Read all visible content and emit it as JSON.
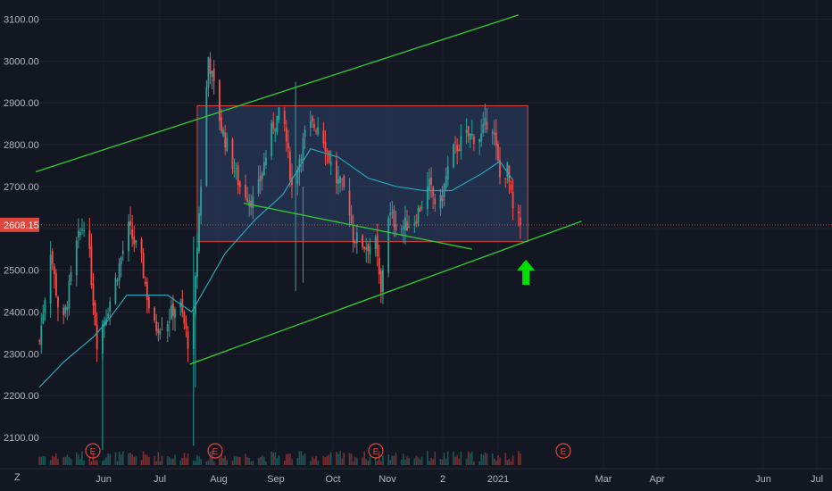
{
  "chart_data": {
    "type": "candlestick",
    "y_ticks": [
      "3100.00",
      "3000.00",
      "2900.00",
      "2800.00",
      "2700.00",
      "2600.00",
      "2500.00",
      "2400.00",
      "2300.00",
      "2200.00",
      "2100.00"
    ],
    "y_values": [
      3100,
      3000,
      2900,
      2800,
      2700,
      2600,
      2500,
      2400,
      2300,
      2200,
      2100
    ],
    "x_ticks": [
      "Jun",
      "Jul",
      "Aug",
      "Sep",
      "Oct",
      "Nov",
      "2",
      "2021",
      "Mar",
      "Apr",
      "Jun",
      "Jul"
    ],
    "last_price": 2608.15,
    "last_price_label": "2608.15",
    "earnings_marker": "E",
    "logo_text": "Z",
    "colors": {
      "background": "#131722",
      "up": "#26a69a",
      "down": "#ef5350",
      "ma": "#2aa5b8",
      "channel": "#32cd32",
      "arrow": "#00e000",
      "box_border": "#e0453b",
      "box_fill": "#2b3f66",
      "price_line": "#e0453b"
    },
    "ohlc_keypoints": [
      [
        "2020-05-12",
        2330
      ],
      [
        "2020-05-18",
        2550
      ],
      [
        "2020-05-24",
        2350
      ],
      [
        "2020-06-01",
        2560
      ],
      [
        "2020-06-06",
        2630
      ],
      [
        "2020-06-12",
        2330
      ],
      [
        "2020-06-20",
        2440
      ],
      [
        "2020-06-29",
        2600
      ],
      [
        "2020-07-06",
        2520
      ],
      [
        "2020-07-12",
        2360
      ],
      [
        "2020-07-20",
        2380
      ],
      [
        "2020-07-26",
        2430
      ],
      [
        "2020-08-02",
        2290
      ],
      [
        "2020-08-05",
        2560
      ],
      [
        "2020-08-08",
        2780
      ],
      [
        "2020-08-11",
        3010
      ],
      [
        "2020-08-18",
        2840
      ],
      [
        "2020-08-28",
        2700
      ],
      [
        "2020-09-05",
        2660
      ],
      [
        "2020-09-15",
        2850
      ],
      [
        "2020-09-20",
        2880
      ],
      [
        "2020-09-25",
        2700
      ],
      [
        "2020-10-03",
        2840
      ],
      [
        "2020-10-10",
        2850
      ],
      [
        "2020-10-18",
        2720
      ],
      [
        "2020-10-25",
        2680
      ],
      [
        "2020-10-28",
        2580
      ],
      [
        "2020-11-03",
        2560
      ],
      [
        "2020-11-09",
        2560
      ],
      [
        "2020-11-12",
        2440
      ],
      [
        "2020-11-15",
        2640
      ],
      [
        "2020-11-22",
        2600
      ],
      [
        "2020-11-30",
        2620
      ],
      [
        "2020-12-08",
        2700
      ],
      [
        "2020-12-13",
        2640
      ],
      [
        "2020-12-20",
        2780
      ],
      [
        "2020-12-28",
        2820
      ],
      [
        "2021-01-05",
        2820
      ],
      [
        "2021-01-10",
        2880
      ],
      [
        "2021-01-15",
        2720
      ],
      [
        "2021-01-19",
        2740
      ],
      [
        "2021-01-22",
        2640
      ],
      [
        "2021-01-26",
        2608
      ]
    ],
    "ma_keypoints": [
      [
        "2020-05-12",
        2220
      ],
      [
        "2020-05-25",
        2280
      ],
      [
        "2020-06-10",
        2340
      ],
      [
        "2020-06-18",
        2380
      ],
      [
        "2020-06-28",
        2440
      ],
      [
        "2020-07-08",
        2440
      ],
      [
        "2020-07-20",
        2440
      ],
      [
        "2020-08-02",
        2400
      ],
      [
        "2020-08-20",
        2540
      ],
      [
        "2020-09-05",
        2620
      ],
      [
        "2020-09-20",
        2680
      ],
      [
        "2020-10-05",
        2790
      ],
      [
        "2020-10-20",
        2770
      ],
      [
        "2020-11-05",
        2720
      ],
      [
        "2020-11-20",
        2700
      ],
      [
        "2020-12-05",
        2690
      ],
      [
        "2020-12-20",
        2690
      ],
      [
        "2021-01-05",
        2730
      ],
      [
        "2021-01-15",
        2760
      ],
      [
        "2021-01-22",
        2715
      ]
    ],
    "annotations": {
      "rectangle": {
        "x": [
          "2020-08-05",
          "2021-01-30"
        ],
        "y": [
          2568,
          2893
        ]
      },
      "channel_upper": [
        [
          "2020-05-10",
          2735
        ],
        [
          "2021-01-25",
          3110
        ]
      ],
      "channel_lower": [
        [
          "2020-08-01",
          2275
        ],
        [
          "2021-02-28",
          2617
        ]
      ],
      "trend_line": [
        [
          "2020-08-30",
          2660
        ],
        [
          "2020-12-31",
          2550
        ]
      ],
      "arrow_up": {
        "x": "2021-01-29",
        "y_from": 2465,
        "y_to": 2525
      },
      "earnings_dates": [
        "2020-04-28",
        "2020-07-30",
        "2020-10-29",
        "2021-02-02"
      ]
    }
  }
}
